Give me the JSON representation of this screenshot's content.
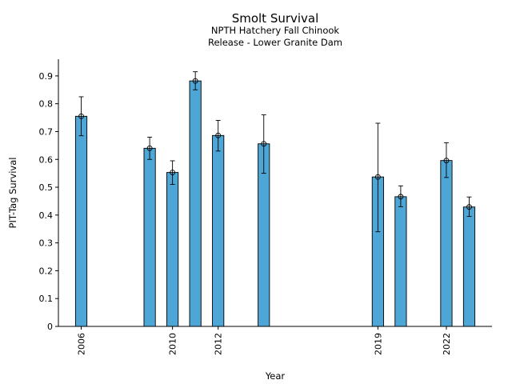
{
  "chart_data": {
    "type": "bar",
    "title": "Smolt Survival",
    "subtitle_line1": "NPTH Hatchery Fall Chinook",
    "subtitle_line2": "Release - Lower Granite Dam",
    "xlabel": "Year",
    "ylabel": "PIT-Tag Survival",
    "xlim": [
      2005.0,
      2024.0
    ],
    "ylim": [
      0,
      0.96
    ],
    "x_ticks": [
      2006,
      2010,
      2012,
      2019,
      2022
    ],
    "y_ticks": [
      0,
      0.1,
      0.2,
      0.3,
      0.4,
      0.5,
      0.6,
      0.7,
      0.8,
      0.9
    ],
    "bar_color": "#4da6d5",
    "grid": false,
    "points": [
      {
        "x": 2006,
        "value": 0.755,
        "err_low": 0.685,
        "err_high": 0.825
      },
      {
        "x": 2009,
        "value": 0.64,
        "err_low": 0.6,
        "err_high": 0.68
      },
      {
        "x": 2010,
        "value": 0.553,
        "err_low": 0.51,
        "err_high": 0.595
      },
      {
        "x": 2011,
        "value": 0.882,
        "err_low": 0.85,
        "err_high": 0.915
      },
      {
        "x": 2012,
        "value": 0.686,
        "err_low": 0.63,
        "err_high": 0.74
      },
      {
        "x": 2014,
        "value": 0.656,
        "err_low": 0.55,
        "err_high": 0.76
      },
      {
        "x": 2019,
        "value": 0.537,
        "err_low": 0.34,
        "err_high": 0.73
      },
      {
        "x": 2020,
        "value": 0.466,
        "err_low": 0.43,
        "err_high": 0.505
      },
      {
        "x": 2022,
        "value": 0.596,
        "err_low": 0.535,
        "err_high": 0.66
      },
      {
        "x": 2023,
        "value": 0.429,
        "err_low": 0.395,
        "err_high": 0.465
      }
    ]
  }
}
